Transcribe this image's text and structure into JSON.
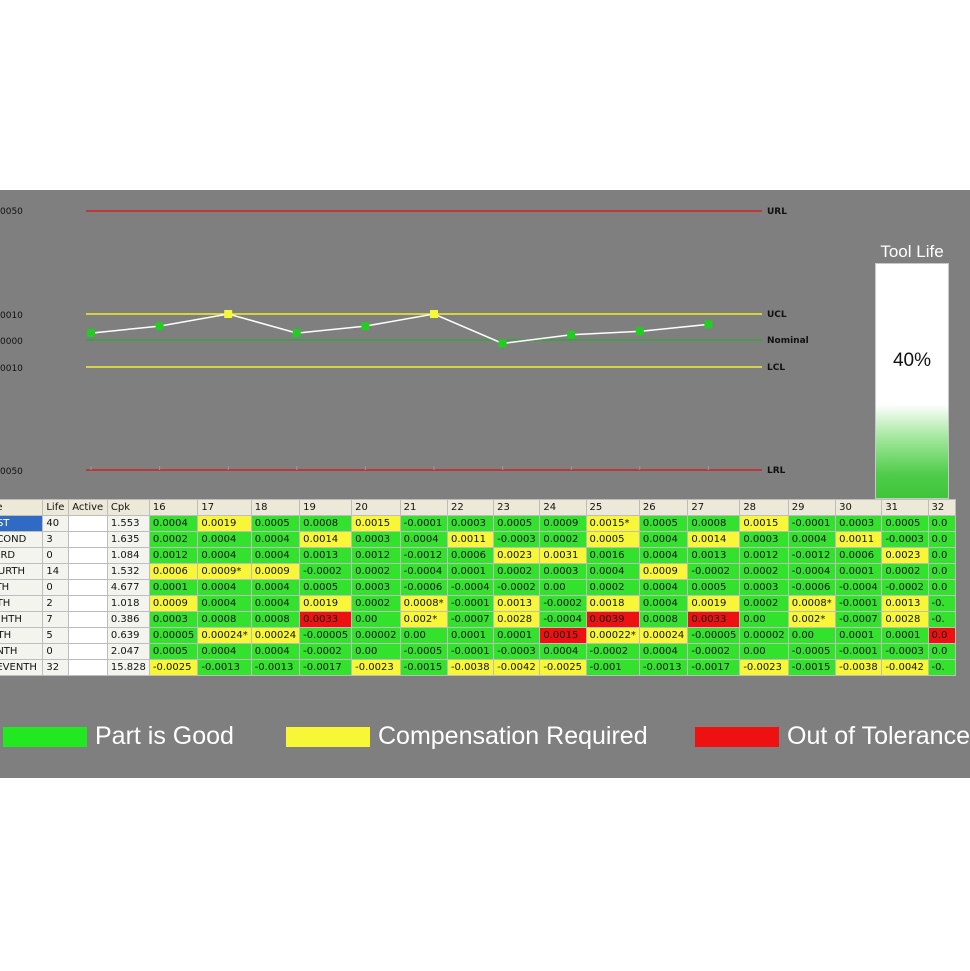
{
  "chart": {
    "axis_labels": [
      "0050",
      "0010",
      "0000",
      "0010",
      "0050"
    ],
    "limit_labels": {
      "url": "URL",
      "ucl": "UCL",
      "nominal": "Nominal",
      "lcl": "LCL",
      "lrl": "LRL"
    },
    "colors": {
      "background": "#7f7f7f",
      "limit_red": "#d42020",
      "control_yellow": "#f2ee30",
      "nominal_green": "#2fa82f",
      "point_good": "#22cc22",
      "point_warn": "#f7f737",
      "line": "#ffffff"
    }
  },
  "chart_data": {
    "type": "line",
    "points": [
      {
        "value": 0.0004,
        "status": "good"
      },
      {
        "value": 0.0008,
        "status": "good"
      },
      {
        "value": 0.0015,
        "status": "warn"
      },
      {
        "value": 0.0004,
        "status": "good"
      },
      {
        "value": 0.0008,
        "status": "good"
      },
      {
        "value": 0.0015,
        "status": "warn"
      },
      {
        "value": -0.0002,
        "status": "good"
      },
      {
        "value": 0.0003,
        "status": "good"
      },
      {
        "value": 0.0005,
        "status": "good"
      },
      {
        "value": 0.0009,
        "status": "good"
      }
    ]
  },
  "tool_life": {
    "title": "Tool Life",
    "percent_label": "40%",
    "level": 0.4
  },
  "table": {
    "headers": [
      "ne",
      "Life",
      "Active",
      "Cpk",
      "16",
      "17",
      "18",
      "19",
      "20",
      "21",
      "22",
      "23",
      "24",
      "25",
      "26",
      "27",
      "28",
      "29",
      "30",
      "31",
      "32"
    ],
    "rows": [
      {
        "name": "RST",
        "life": "40",
        "cpk": "1.553",
        "selected": true,
        "cells": [
          [
            "0.0004",
            "g"
          ],
          [
            "0.0019",
            "y"
          ],
          [
            "0.0005",
            "g"
          ],
          [
            "0.0008",
            "g"
          ],
          [
            "0.0015",
            "y"
          ],
          [
            "-0.0001",
            "g"
          ],
          [
            "0.0003",
            "g"
          ],
          [
            "0.0005",
            "g"
          ],
          [
            "0.0009",
            "g"
          ],
          [
            "0.0015*",
            "y"
          ],
          [
            "0.0005",
            "g"
          ],
          [
            "0.0008",
            "g"
          ],
          [
            "0.0015",
            "y"
          ],
          [
            "-0.0001",
            "g"
          ],
          [
            "0.0003",
            "g"
          ],
          [
            "0.0005",
            "g"
          ],
          [
            "0.0",
            "g"
          ]
        ]
      },
      {
        "name": "ECOND",
        "life": "3",
        "cpk": "1.635",
        "selected": false,
        "cells": [
          [
            "0.0002",
            "g"
          ],
          [
            "0.0004",
            "g"
          ],
          [
            "0.0004",
            "g"
          ],
          [
            "0.0014",
            "y"
          ],
          [
            "0.0003",
            "g"
          ],
          [
            "0.0004",
            "g"
          ],
          [
            "0.0011",
            "y"
          ],
          [
            "-0.0003",
            "g"
          ],
          [
            "0.0002",
            "g"
          ],
          [
            "0.0005",
            "y"
          ],
          [
            "0.0004",
            "g"
          ],
          [
            "0.0014",
            "y"
          ],
          [
            "0.0003",
            "g"
          ],
          [
            "0.0004",
            "g"
          ],
          [
            "0.0011",
            "y"
          ],
          [
            "-0.0003",
            "g"
          ],
          [
            "0.0",
            "g"
          ]
        ]
      },
      {
        "name": "HIRD",
        "life": "0",
        "cpk": "1.084",
        "selected": false,
        "cells": [
          [
            "0.0012",
            "g"
          ],
          [
            "0.0004",
            "g"
          ],
          [
            "0.0004",
            "g"
          ],
          [
            "0.0013",
            "g"
          ],
          [
            "0.0012",
            "g"
          ],
          [
            "-0.0012",
            "g"
          ],
          [
            "0.0006",
            "g"
          ],
          [
            "0.0023",
            "y"
          ],
          [
            "0.0031",
            "y"
          ],
          [
            "0.0016",
            "g"
          ],
          [
            "0.0004",
            "g"
          ],
          [
            "0.0013",
            "g"
          ],
          [
            "0.0012",
            "g"
          ],
          [
            "-0.0012",
            "g"
          ],
          [
            "0.0006",
            "g"
          ],
          [
            "0.0023",
            "y"
          ],
          [
            "0.0",
            "g"
          ]
        ]
      },
      {
        "name": "OURTH",
        "life": "14",
        "cpk": "1.532",
        "selected": false,
        "cells": [
          [
            "0.0006",
            "y"
          ],
          [
            "0.0009*",
            "y"
          ],
          [
            "0.0009",
            "y"
          ],
          [
            "-0.0002",
            "g"
          ],
          [
            "0.0002",
            "g"
          ],
          [
            "-0.0004",
            "g"
          ],
          [
            "0.0001",
            "g"
          ],
          [
            "0.0002",
            "g"
          ],
          [
            "0.0003",
            "g"
          ],
          [
            "0.0004",
            "g"
          ],
          [
            "0.0009",
            "y"
          ],
          [
            "-0.0002",
            "g"
          ],
          [
            "0.0002",
            "g"
          ],
          [
            "-0.0004",
            "g"
          ],
          [
            "0.0001",
            "g"
          ],
          [
            "0.0002",
            "g"
          ],
          [
            "0.0",
            "g"
          ]
        ]
      },
      {
        "name": "FTH",
        "life": "0",
        "cpk": "4.677",
        "selected": false,
        "cells": [
          [
            "0.0001",
            "g"
          ],
          [
            "0.0004",
            "g"
          ],
          [
            "0.0004",
            "g"
          ],
          [
            "0.0005",
            "g"
          ],
          [
            "0.0003",
            "g"
          ],
          [
            "-0.0006",
            "g"
          ],
          [
            "-0.0004",
            "g"
          ],
          [
            "-0.0002",
            "g"
          ],
          [
            "0.00",
            "g"
          ],
          [
            "0.0002",
            "g"
          ],
          [
            "0.0004",
            "g"
          ],
          [
            "0.0005",
            "g"
          ],
          [
            "0.0003",
            "g"
          ],
          [
            "-0.0006",
            "g"
          ],
          [
            "-0.0004",
            "g"
          ],
          [
            "-0.0002",
            "g"
          ],
          [
            "0.0",
            "g"
          ]
        ]
      },
      {
        "name": "XTH",
        "life": "2",
        "cpk": "1.018",
        "selected": false,
        "cells": [
          [
            "0.0009",
            "y"
          ],
          [
            "0.0004",
            "g"
          ],
          [
            "0.0004",
            "g"
          ],
          [
            "0.0019",
            "y"
          ],
          [
            "0.0002",
            "g"
          ],
          [
            "0.0008*",
            "y"
          ],
          [
            "-0.0001",
            "g"
          ],
          [
            "0.0013",
            "y"
          ],
          [
            "-0.0002",
            "g"
          ],
          [
            "0.0018",
            "y"
          ],
          [
            "0.0004",
            "g"
          ],
          [
            "0.0019",
            "y"
          ],
          [
            "0.0002",
            "g"
          ],
          [
            "0.0008*",
            "y"
          ],
          [
            "-0.0001",
            "g"
          ],
          [
            "0.0013",
            "y"
          ],
          [
            "-0.",
            "g"
          ]
        ]
      },
      {
        "name": "IGHTH",
        "life": "7",
        "cpk": "0.386",
        "selected": false,
        "cells": [
          [
            "0.0003",
            "g"
          ],
          [
            "0.0008",
            "g"
          ],
          [
            "0.0008",
            "g"
          ],
          [
            "0.0033",
            "r"
          ],
          [
            "0.00",
            "g"
          ],
          [
            "0.002*",
            "y"
          ],
          [
            "-0.0007",
            "g"
          ],
          [
            "0.0028",
            "y"
          ],
          [
            "-0.0004",
            "g"
          ],
          [
            "0.0039",
            "r"
          ],
          [
            "0.0008",
            "g"
          ],
          [
            "0.0033",
            "r"
          ],
          [
            "0.00",
            "g"
          ],
          [
            "0.002*",
            "y"
          ],
          [
            "-0.0007",
            "g"
          ],
          [
            "0.0028",
            "y"
          ],
          [
            "-0.",
            "g"
          ]
        ]
      },
      {
        "name": "NTH",
        "life": "5",
        "cpk": "0.639",
        "selected": false,
        "cells": [
          [
            "0.00005",
            "g"
          ],
          [
            "0.00024*",
            "y"
          ],
          [
            "0.00024",
            "y"
          ],
          [
            "-0.00005",
            "g"
          ],
          [
            "0.00002",
            "g"
          ],
          [
            "0.00",
            "g"
          ],
          [
            "0.0001",
            "g"
          ],
          [
            "0.0001",
            "g"
          ],
          [
            "0.0015",
            "r"
          ],
          [
            "0.00022*",
            "y"
          ],
          [
            "0.00024",
            "y"
          ],
          [
            "-0.00005",
            "g"
          ],
          [
            "0.00002",
            "g"
          ],
          [
            "0.00",
            "g"
          ],
          [
            "0.0001",
            "g"
          ],
          [
            "0.0001",
            "g"
          ],
          [
            "0.0",
            "r"
          ]
        ]
      },
      {
        "name": "ENTH",
        "life": "0",
        "cpk": "2.047",
        "selected": false,
        "cells": [
          [
            "0.0005",
            "g"
          ],
          [
            "0.0004",
            "g"
          ],
          [
            "0.0004",
            "g"
          ],
          [
            "-0.0002",
            "g"
          ],
          [
            "0.00",
            "g"
          ],
          [
            "-0.0005",
            "g"
          ],
          [
            "-0.0001",
            "g"
          ],
          [
            "-0.0003",
            "g"
          ],
          [
            "0.0004",
            "g"
          ],
          [
            "-0.0002",
            "g"
          ],
          [
            "0.0004",
            "g"
          ],
          [
            "-0.0002",
            "g"
          ],
          [
            "0.00",
            "g"
          ],
          [
            "-0.0005",
            "g"
          ],
          [
            "-0.0001",
            "g"
          ],
          [
            "-0.0003",
            "g"
          ],
          [
            "0.0",
            "g"
          ]
        ]
      },
      {
        "name": "SEVENTH",
        "life": "32",
        "cpk": "15.828",
        "selected": false,
        "cells": [
          [
            "-0.0025",
            "y"
          ],
          [
            "-0.0013",
            "g"
          ],
          [
            "-0.0013",
            "g"
          ],
          [
            "-0.0017",
            "g"
          ],
          [
            "-0.0023",
            "y"
          ],
          [
            "-0.0015",
            "g"
          ],
          [
            "-0.0038",
            "y"
          ],
          [
            "-0.0042",
            "y"
          ],
          [
            "-0.0025",
            "y"
          ],
          [
            "-0.001",
            "g"
          ],
          [
            "-0.0013",
            "g"
          ],
          [
            "-0.0017",
            "g"
          ],
          [
            "-0.0023",
            "y"
          ],
          [
            "-0.0015",
            "g"
          ],
          [
            "-0.0038",
            "y"
          ],
          [
            "-0.0042",
            "y"
          ],
          [
            "-0.",
            "g"
          ]
        ]
      }
    ]
  },
  "legend": [
    {
      "label": "Part is Good",
      "color": "#22e822"
    },
    {
      "label": "Compensation Required",
      "color": "#f7f737"
    },
    {
      "label": "Out of Tolerance",
      "color": "#ee1111"
    }
  ]
}
